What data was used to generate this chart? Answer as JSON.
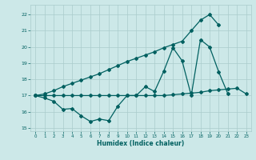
{
  "xlabel": "Humidex (Indice chaleur)",
  "background_color": "#cce8e8",
  "grid_color": "#aacccc",
  "line_color": "#006060",
  "xlim": [
    -0.5,
    23.5
  ],
  "ylim": [
    14.8,
    22.6
  ],
  "yticks": [
    15,
    16,
    17,
    18,
    19,
    20,
    21,
    22
  ],
  "xticks": [
    0,
    1,
    2,
    3,
    4,
    5,
    6,
    7,
    8,
    9,
    10,
    11,
    12,
    13,
    14,
    15,
    16,
    17,
    18,
    19,
    20,
    21,
    22,
    23
  ],
  "line_zigzag_x": [
    0,
    1,
    2,
    3,
    4,
    5,
    6,
    7,
    8,
    9,
    10,
    11,
    12,
    13,
    14,
    15,
    16,
    17,
    18,
    19,
    20,
    21
  ],
  "line_zigzag_y": [
    17.0,
    16.85,
    16.65,
    16.15,
    16.2,
    15.75,
    15.4,
    15.55,
    15.45,
    16.35,
    17.0,
    17.0,
    17.55,
    17.25,
    18.5,
    19.95,
    19.15,
    17.0,
    20.45,
    20.0,
    18.45,
    17.1
  ],
  "line_flat_x": [
    0,
    1,
    2,
    3,
    4,
    5,
    6,
    7,
    8,
    9,
    10,
    11,
    12,
    13,
    14,
    15,
    16,
    17,
    18,
    19,
    20,
    21,
    22,
    23
  ],
  "line_flat_y": [
    17.0,
    17.0,
    17.0,
    17.0,
    17.0,
    17.0,
    17.0,
    17.0,
    17.0,
    17.0,
    17.0,
    17.0,
    17.0,
    17.0,
    17.0,
    17.05,
    17.1,
    17.15,
    17.2,
    17.3,
    17.35,
    17.4,
    17.45,
    17.1
  ],
  "line_rising_x": [
    0,
    1,
    2,
    3,
    4,
    5,
    6,
    7,
    8,
    9,
    10,
    11,
    12,
    13,
    14,
    15,
    16,
    17,
    18,
    19,
    20
  ],
  "line_rising_y": [
    17.0,
    17.1,
    17.3,
    17.55,
    17.75,
    17.95,
    18.15,
    18.35,
    18.6,
    18.85,
    19.1,
    19.3,
    19.5,
    19.7,
    19.95,
    20.15,
    20.35,
    21.0,
    21.65,
    22.0,
    21.35
  ]
}
